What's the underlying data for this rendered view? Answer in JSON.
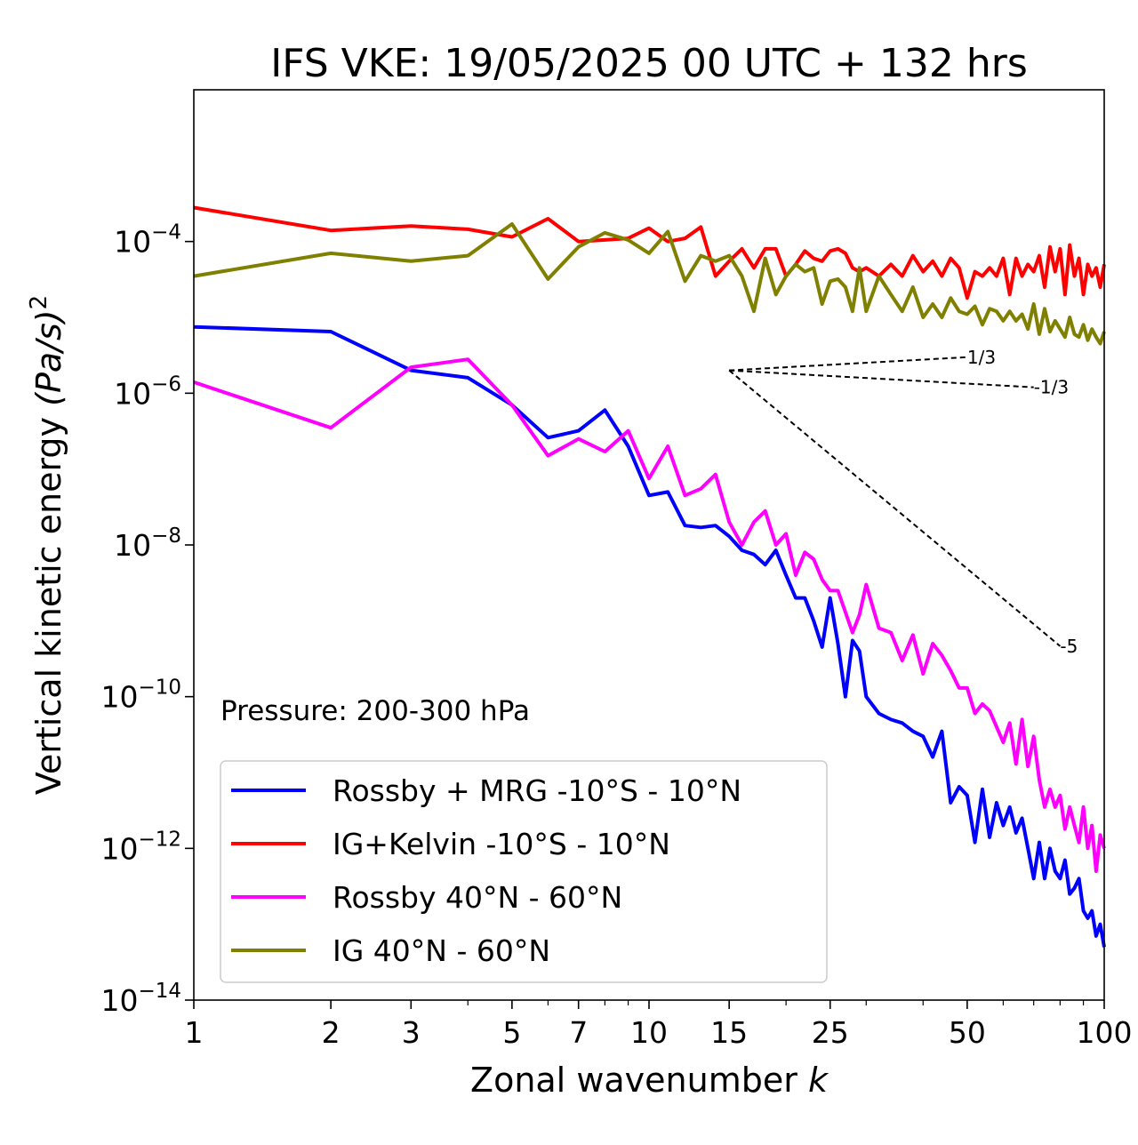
{
  "chart_data": {
    "type": "line",
    "title": "IFS VKE: 19/05/2025 00 UTC + 132 hrs",
    "xlabel": "Zonal wavenumber",
    "xlabel_var": "k",
    "ylabel": "Vertical kinetic energy",
    "ylabel_unit": "(Pa/s)",
    "ylabel_exp": "2",
    "xscale": "log",
    "yscale": "log",
    "xlim": [
      1,
      100
    ],
    "ylim": [
      1e-14,
      0.01
    ],
    "xticks": [
      1,
      2,
      3,
      5,
      7,
      10,
      15,
      25,
      50,
      100
    ],
    "xtick_labels": [
      "1",
      "2",
      "3",
      "5",
      "7",
      "10",
      "15",
      "25",
      "50",
      "100"
    ],
    "yticks": [
      {
        "value": 0.0001,
        "base": "10",
        "exp": "−4"
      },
      {
        "value": 1e-06,
        "base": "10",
        "exp": "−6"
      },
      {
        "value": 1e-08,
        "base": "10",
        "exp": "−8"
      },
      {
        "value": 1e-10,
        "base": "10",
        "exp": "−10"
      },
      {
        "value": 1e-12,
        "base": "10",
        "exp": "−12"
      },
      {
        "value": 1e-14,
        "base": "10",
        "exp": "−14"
      }
    ],
    "annotation": "Pressure: 200-300 hPa",
    "legend_position": "lower-left",
    "series": [
      {
        "name": "Rossby + MRG -10°S - 10°N",
        "color": "#0000ff",
        "x": [
          1,
          2,
          3,
          4,
          5,
          6,
          7,
          8,
          9,
          10,
          11,
          12,
          13,
          14,
          15,
          16,
          17,
          18,
          19,
          20,
          21,
          22,
          23,
          24,
          25,
          26,
          27,
          28,
          29,
          30,
          32,
          34,
          36,
          38,
          40,
          42,
          44,
          46,
          48,
          50,
          52,
          54,
          56,
          58,
          60,
          62,
          64,
          66,
          68,
          70,
          72,
          74,
          76,
          78,
          80,
          82,
          84,
          86,
          88,
          90,
          92,
          94,
          96,
          98,
          100
        ],
        "y": [
          7.5e-06,
          6.5e-06,
          2e-06,
          1.6e-06,
          7e-07,
          2.6e-07,
          3.2e-07,
          6e-07,
          2e-07,
          4.5e-08,
          5e-08,
          1.8e-08,
          1.7e-08,
          1.8e-08,
          1.3e-08,
          8.5e-09,
          7.5e-09,
          5.5e-09,
          8.5e-09,
          4e-09,
          2e-09,
          2e-09,
          1e-09,
          4.5e-10,
          2e-09,
          5e-10,
          1e-10,
          5.5e-10,
          4e-10,
          1e-10,
          6e-11,
          5e-11,
          4.5e-11,
          3.5e-11,
          3e-11,
          1.6e-11,
          3.5e-11,
          4e-12,
          6.5e-12,
          5e-12,
          1.2e-12,
          6e-12,
          1.4e-12,
          4e-12,
          2e-12,
          3.5e-12,
          1.6e-12,
          2.5e-12,
          1e-12,
          4e-13,
          1.2e-12,
          4e-13,
          1e-12,
          5e-13,
          4e-13,
          7e-13,
          2.5e-13,
          3e-13,
          4e-13,
          1.5e-13,
          1.2e-13,
          1.5e-13,
          7e-14,
          1e-13,
          5e-14
        ]
      },
      {
        "name": "IG+Kelvin -10°S - 10°N",
        "color": "#ff0000",
        "x": [
          1,
          2,
          3,
          4,
          5,
          6,
          7,
          8,
          9,
          10,
          11,
          12,
          13,
          14,
          15,
          16,
          17,
          18,
          19,
          20,
          21,
          22,
          23,
          24,
          25,
          26,
          27,
          28,
          29,
          30,
          32,
          34,
          36,
          38,
          40,
          42,
          44,
          46,
          48,
          50,
          52,
          54,
          56,
          58,
          60,
          62,
          64,
          66,
          68,
          70,
          72,
          74,
          76,
          78,
          80,
          82,
          84,
          86,
          88,
          90,
          92,
          94,
          96,
          98,
          100
        ],
        "y": [
          0.00028,
          0.00014,
          0.00016,
          0.000145,
          0.000115,
          0.0002,
          0.0001,
          0.000105,
          0.00011,
          0.00015,
          0.0001,
          0.00011,
          0.000155,
          3.5e-05,
          5.5e-05,
          8e-05,
          4.5e-05,
          8e-05,
          8e-05,
          3.5e-05,
          5e-05,
          7.5e-05,
          6e-05,
          5.5e-05,
          7.5e-05,
          8e-05,
          7e-05,
          4.5e-05,
          4e-05,
          4.5e-05,
          3.5e-05,
          5e-05,
          3.5e-05,
          6.5e-05,
          4e-05,
          5.5e-05,
          3.5e-05,
          6e-05,
          4.5e-05,
          1.8e-05,
          4e-05,
          3.5e-05,
          4.5e-05,
          3.5e-05,
          6e-05,
          2e-05,
          6e-05,
          3.5e-05,
          5e-05,
          4e-05,
          6.5e-05,
          2.5e-05,
          8.5e-05,
          4e-05,
          8e-05,
          2e-05,
          9e-05,
          3.5e-05,
          6e-05,
          2e-05,
          5e-05,
          3.5e-05,
          4.5e-05,
          2.5e-05,
          5e-05
        ]
      },
      {
        "name": "Rossby 40°N - 60°N",
        "color": "#ff00ff",
        "x": [
          1,
          2,
          3,
          4,
          5,
          6,
          7,
          8,
          9,
          10,
          11,
          12,
          13,
          14,
          15,
          16,
          17,
          18,
          19,
          20,
          21,
          22,
          23,
          24,
          25,
          26,
          27,
          28,
          29,
          30,
          32,
          34,
          36,
          38,
          40,
          42,
          44,
          46,
          48,
          50,
          52,
          54,
          56,
          58,
          60,
          62,
          64,
          66,
          68,
          70,
          72,
          74,
          76,
          78,
          80,
          82,
          84,
          86,
          88,
          90,
          92,
          94,
          96,
          98,
          100
        ],
        "y": [
          1.4e-06,
          3.5e-07,
          2.2e-06,
          2.8e-06,
          7e-07,
          1.5e-07,
          2.5e-07,
          1.7e-07,
          3.2e-07,
          7.5e-08,
          2e-07,
          4.5e-08,
          5.5e-08,
          8.5e-08,
          2e-08,
          1e-08,
          2e-08,
          2.8e-08,
          1e-08,
          1.4e-08,
          4e-09,
          8e-09,
          6.5e-09,
          3.5e-09,
          2.5e-09,
          2.5e-09,
          1.3e-09,
          7e-10,
          1.2e-09,
          3e-09,
          8e-10,
          7e-10,
          3e-10,
          6.5e-10,
          2e-10,
          5e-10,
          3.5e-10,
          2.2e-10,
          1.3e-10,
          1.3e-10,
          6e-11,
          8e-11,
          6.5e-11,
          4e-11,
          2.5e-11,
          4.5e-11,
          1.3e-11,
          5e-11,
          1.2e-11,
          3e-11,
          8e-12,
          3.5e-12,
          6e-12,
          3.5e-12,
          5e-12,
          1.8e-12,
          3.5e-12,
          2e-12,
          1.2e-12,
          3.5e-12,
          1e-12,
          2e-12,
          5e-13,
          1.5e-12,
          1e-12
        ]
      },
      {
        "name": "IG 40°N - 60°N",
        "color": "#808000",
        "x": [
          1,
          2,
          3,
          4,
          5,
          6,
          7,
          8,
          9,
          10,
          11,
          12,
          13,
          14,
          15,
          16,
          17,
          18,
          19,
          20,
          21,
          22,
          23,
          24,
          25,
          26,
          27,
          28,
          29,
          30,
          32,
          34,
          36,
          38,
          40,
          42,
          44,
          46,
          48,
          50,
          52,
          54,
          56,
          58,
          60,
          62,
          64,
          66,
          68,
          70,
          72,
          74,
          76,
          78,
          80,
          82,
          84,
          86,
          88,
          90,
          92,
          94,
          96,
          98,
          100
        ],
        "y": [
          3.5e-05,
          7e-05,
          5.5e-05,
          6.5e-05,
          0.00017,
          3.2e-05,
          8.5e-05,
          0.00013,
          0.000105,
          7e-05,
          0.000135,
          3e-05,
          6.5e-05,
          5.5e-05,
          6.5e-05,
          3.5e-05,
          1.2e-05,
          6e-05,
          2e-05,
          3.5e-05,
          5e-05,
          4e-05,
          4.5e-05,
          1.5e-05,
          3e-05,
          3.2e-05,
          2.5e-05,
          1.2e-05,
          4.5e-05,
          1.2e-05,
          3.5e-05,
          2e-05,
          1.2e-05,
          2.5e-05,
          1e-05,
          1.5e-05,
          1e-05,
          1.8e-05,
          1.2e-05,
          1.1e-05,
          1.4e-05,
          8e-06,
          1.3e-05,
          1.2e-05,
          9e-06,
          1.2e-05,
          9e-06,
          1.1e-05,
          7e-06,
          1.5e-05,
          6e-06,
          1.3e-05,
          6.5e-06,
          9e-06,
          7e-06,
          5.5e-06,
          1e-05,
          6e-06,
          5.5e-06,
          8e-06,
          5e-06,
          7e-06,
          5.5e-06,
          4.5e-06,
          6.5e-06
        ]
      }
    ],
    "reference_lines": [
      {
        "label": "1/3",
        "slope": 0.3333,
        "x0": 15,
        "y0": 2e-06,
        "x1": 50
      },
      {
        "label": "-1/3",
        "slope": -0.3333,
        "x0": 15,
        "y0": 2e-06,
        "x1": 70
      },
      {
        "label": "-5",
        "slope": -5,
        "x0": 15,
        "y0": 2e-06,
        "x1": 80
      }
    ]
  }
}
